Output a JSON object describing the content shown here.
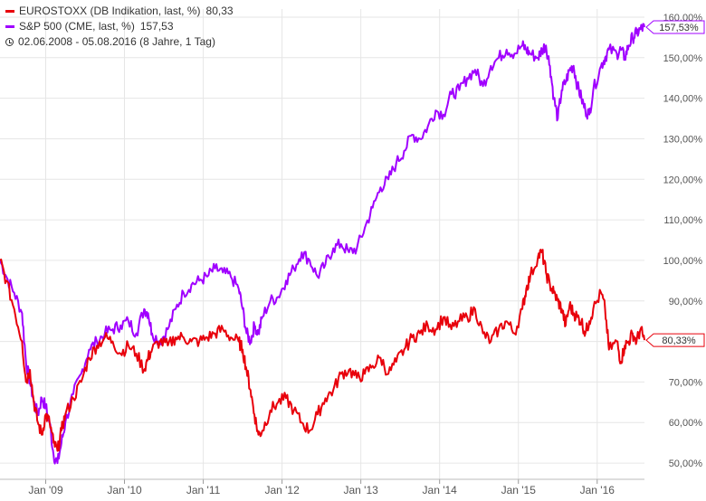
{
  "legend": {
    "series_1_label": "EUROSTOXX (DB Indikation, last, %)",
    "series_1_value": "80,33",
    "series_2_label": "S&P 500 (CME, last, %)",
    "series_2_value": "157,53",
    "range_label": "02.06.2008 - 05.08.2016 (8 Jahre, 1 Tag)"
  },
  "chart_data": {
    "type": "line",
    "title": "",
    "xlabel": "",
    "ylabel": "",
    "ylim": [
      46,
      162
    ],
    "xlim": [
      2008.42,
      2016.6
    ],
    "grid": true,
    "legend_position": "top-left",
    "y_ticks": [
      50,
      60,
      70,
      80,
      90,
      100,
      110,
      120,
      130,
      140,
      150,
      160
    ],
    "y_tick_labels": [
      "50,00%",
      "60,00%",
      "70,00%",
      "80,00%",
      "90,00%",
      "100,00%",
      "110,00%",
      "120,00%",
      "130,00%",
      "140,00%",
      "150,00%",
      "160,00%"
    ],
    "x_ticks": [
      2009,
      2010,
      2011,
      2012,
      2013,
      2014,
      2015,
      2016
    ],
    "x_tick_labels": [
      "Jan '09",
      "Jan '10",
      "Jan '11",
      "Jan '12",
      "Jan '13",
      "Jan '14",
      "Jan '15",
      "Jan '16"
    ],
    "series": [
      {
        "name": "EUROSTOXX (DB Indikation, last, %)",
        "color": "#e8000b",
        "last_label": "80,33%",
        "x": [
          2008.42,
          2008.5,
          2008.6,
          2008.7,
          2008.75,
          2008.8,
          2008.85,
          2008.9,
          2008.95,
          2009.0,
          2009.05,
          2009.1,
          2009.15,
          2009.2,
          2009.25,
          2009.35,
          2009.45,
          2009.55,
          2009.65,
          2009.75,
          2009.85,
          2009.95,
          2010.05,
          2010.15,
          2010.25,
          2010.3,
          2010.35,
          2010.45,
          2010.55,
          2010.65,
          2010.75,
          2010.85,
          2010.95,
          2011.05,
          2011.15,
          2011.25,
          2011.35,
          2011.45,
          2011.5,
          2011.55,
          2011.6,
          2011.65,
          2011.7,
          2011.75,
          2011.85,
          2011.95,
          2012.05,
          2012.15,
          2012.25,
          2012.35,
          2012.45,
          2012.55,
          2012.65,
          2012.75,
          2012.85,
          2012.95,
          2013.05,
          2013.15,
          2013.25,
          2013.35,
          2013.45,
          2013.55,
          2013.65,
          2013.75,
          2013.85,
          2013.95,
          2014.05,
          2014.15,
          2014.25,
          2014.35,
          2014.45,
          2014.55,
          2014.65,
          2014.75,
          2014.85,
          2014.95,
          2015.05,
          2015.1,
          2015.15,
          2015.25,
          2015.3,
          2015.35,
          2015.4,
          2015.45,
          2015.5,
          2015.55,
          2015.6,
          2015.65,
          2015.7,
          2015.75,
          2015.8,
          2015.85,
          2015.9,
          2015.95,
          2016.05,
          2016.1,
          2016.15,
          2016.25,
          2016.3,
          2016.35,
          2016.4,
          2016.45,
          2016.5,
          2016.55,
          2016.6
        ],
        "values": [
          100,
          95,
          88,
          80,
          70,
          73,
          65,
          60,
          57,
          62,
          60,
          55,
          53,
          58,
          62,
          66,
          70,
          76,
          79,
          81,
          80,
          77,
          79,
          77,
          73,
          76,
          78,
          80,
          79,
          81,
          81,
          80,
          80,
          81,
          82,
          83,
          81,
          80,
          78,
          73,
          68,
          62,
          57,
          58,
          63,
          65,
          66,
          63,
          60,
          58,
          62,
          66,
          68,
          72,
          73,
          71,
          72,
          74,
          76,
          72,
          75,
          78,
          81,
          82,
          84,
          83,
          86,
          83,
          85,
          86,
          88,
          82,
          80,
          83,
          85,
          82,
          88,
          93,
          96,
          101,
          102,
          97,
          94,
          92,
          90,
          88,
          84,
          89,
          87,
          86,
          85,
          82,
          85,
          88,
          92,
          88,
          78,
          80,
          75,
          79,
          80,
          82,
          80,
          83,
          80.33
        ]
      },
      {
        "name": "S&P 500 (CME, last, %)",
        "color": "#a000ff",
        "last_label": "157,53%",
        "x": [
          2008.42,
          2008.5,
          2008.6,
          2008.7,
          2008.75,
          2008.8,
          2008.85,
          2008.9,
          2008.95,
          2009.0,
          2009.05,
          2009.1,
          2009.15,
          2009.2,
          2009.25,
          2009.35,
          2009.45,
          2009.55,
          2009.65,
          2009.75,
          2009.85,
          2009.95,
          2010.05,
          2010.15,
          2010.25,
          2010.3,
          2010.35,
          2010.45,
          2010.55,
          2010.65,
          2010.75,
          2010.85,
          2010.95,
          2011.05,
          2011.15,
          2011.25,
          2011.35,
          2011.45,
          2011.5,
          2011.55,
          2011.6,
          2011.65,
          2011.7,
          2011.75,
          2011.85,
          2011.95,
          2012.05,
          2012.15,
          2012.25,
          2012.35,
          2012.45,
          2012.55,
          2012.65,
          2012.75,
          2012.85,
          2012.95,
          2013.05,
          2013.15,
          2013.25,
          2013.35,
          2013.45,
          2013.55,
          2013.65,
          2013.75,
          2013.85,
          2013.95,
          2014.05,
          2014.15,
          2014.25,
          2014.35,
          2014.45,
          2014.55,
          2014.65,
          2014.75,
          2014.85,
          2014.95,
          2015.05,
          2015.1,
          2015.15,
          2015.25,
          2015.3,
          2015.35,
          2015.4,
          2015.45,
          2015.5,
          2015.55,
          2015.6,
          2015.65,
          2015.7,
          2015.75,
          2015.8,
          2015.85,
          2015.9,
          2015.95,
          2016.05,
          2016.1,
          2016.15,
          2016.25,
          2016.3,
          2016.35,
          2016.4,
          2016.45,
          2016.5,
          2016.55,
          2016.6
        ],
        "values": [
          100,
          96,
          92,
          87,
          75,
          70,
          65,
          62,
          66,
          64,
          60,
          52,
          50,
          55,
          60,
          67,
          72,
          78,
          80,
          82,
          83,
          84,
          85,
          82,
          88,
          87,
          82,
          80,
          83,
          88,
          92,
          94,
          95,
          96,
          98,
          97,
          96,
          93,
          88,
          82,
          80,
          84,
          82,
          86,
          90,
          91,
          95,
          98,
          102,
          100,
          96,
          99,
          103,
          104,
          102,
          103,
          108,
          113,
          118,
          120,
          124,
          127,
          131,
          130,
          133,
          137,
          136,
          141,
          142,
          145,
          147,
          143,
          148,
          150,
          152,
          151,
          153,
          152,
          151,
          150,
          152,
          153,
          148,
          140,
          135,
          142,
          144,
          147,
          148,
          143,
          140,
          137,
          136,
          142,
          148,
          150,
          152,
          151,
          152,
          150,
          153,
          155,
          156,
          157,
          157.53
        ]
      }
    ]
  }
}
